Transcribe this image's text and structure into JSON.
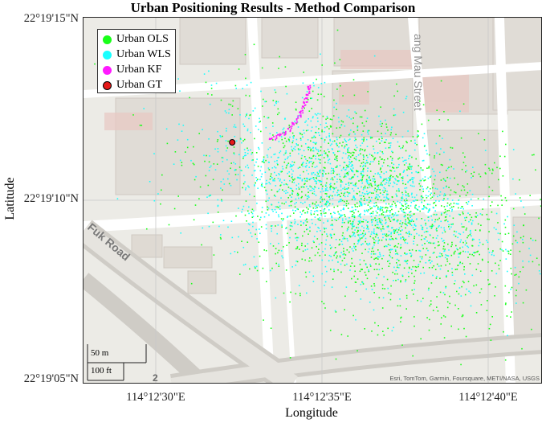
{
  "title": "Urban Positioning Results - Method Comparison",
  "axes": {
    "xlabel": "Longitude",
    "ylabel": "Latitude",
    "xticks": [
      "114°12'30\"E",
      "114°12'35\"E",
      "114°12'40\"E"
    ],
    "yticks": [
      "22°19'15\"N",
      "22°19'10\"N",
      "22°19'05\"N"
    ]
  },
  "legend": {
    "items": [
      {
        "label": "Urban OLS",
        "color": "#19ff19"
      },
      {
        "label": "Urban WLS",
        "color": "#19ffff"
      },
      {
        "label": "Urban KF",
        "color": "#ff19ff"
      },
      {
        "label": "Urban GT",
        "color": "#e61919"
      }
    ]
  },
  "map": {
    "street_labels": [
      "ang Mau Street",
      "Fuk Road"
    ],
    "route_shield": "2",
    "scale": {
      "metric": "50 m",
      "imperial": "100 ft"
    },
    "attribution": "Esri, TomTom, Garmin, Foursquare, METI/NASA, USGS"
  },
  "chart_data": {
    "type": "scatter",
    "title": "Urban Positioning Results - Method Comparison",
    "xlabel": "Longitude",
    "ylabel": "Latitude",
    "x_ticks": [
      "114°12'30\"E",
      "114°12'35\"E",
      "114°12'40\"E"
    ],
    "y_ticks": [
      "22°19'15\"N",
      "22°19'10\"N",
      "22°19'05\"N"
    ],
    "legend_position": "top-left",
    "series": [
      {
        "name": "Urban OLS",
        "color": "#19ff19",
        "center_arcsec": [
          36.5,
          9.8
        ],
        "spread_arcsec": [
          2.4,
          1.4
        ],
        "count": 1600
      },
      {
        "name": "Urban WLS",
        "color": "#19ffff",
        "center_arcsec": [
          35.8,
          10.2
        ],
        "spread_arcsec": [
          2.1,
          1.1
        ],
        "count": 1600
      },
      {
        "name": "Urban KF",
        "color": "#ff19ff",
        "track_arcsec": [
          [
            33.4,
            11.7
          ],
          [
            33.9,
            11.9
          ],
          [
            34.3,
            12.3
          ],
          [
            34.5,
            12.8
          ],
          [
            34.6,
            13.2
          ]
        ]
      },
      {
        "name": "Urban GT",
        "color": "#e61919",
        "point_arcsec": [
          32.3,
          11.6
        ]
      }
    ]
  }
}
